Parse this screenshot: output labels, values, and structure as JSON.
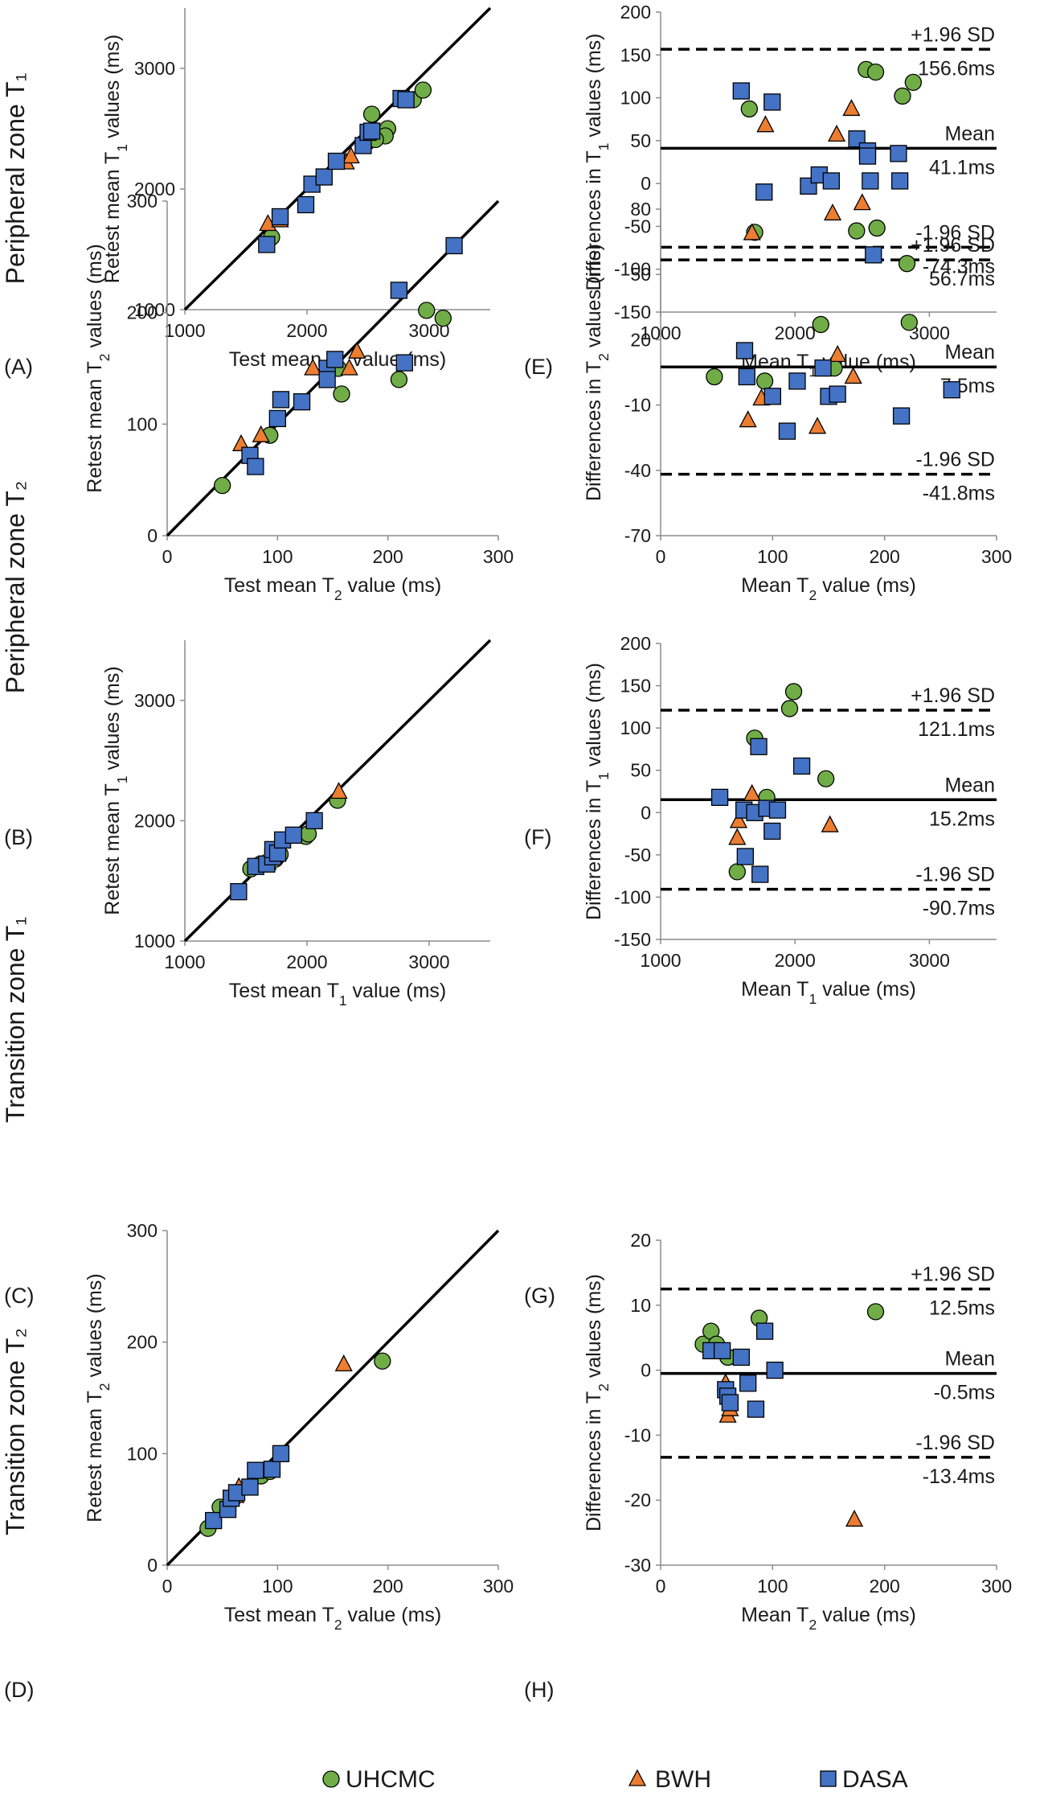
{
  "row_labels": [
    "Peripheral zone T₁",
    "Peripheral zone T₂",
    "Transition zone T₁",
    "Transition zone T₂"
  ],
  "legend": [
    {
      "label": "UHCMC",
      "marker": "circle",
      "color": "#70ad47"
    },
    {
      "label": "BWH",
      "marker": "triangle",
      "color": "#ed7d31"
    },
    {
      "label": "DASA",
      "marker": "square",
      "color": "#4472c4"
    }
  ],
  "chart_data": [
    {
      "panel": "(A)",
      "type": "scatter",
      "xlabel": "Test mean T₁ value (ms)",
      "ylabel": "Retest mean T₁ values (ms)",
      "xlim": [
        1000,
        3500
      ],
      "ylim": [
        1000,
        3500
      ],
      "xticks": [
        1000,
        2000,
        3000
      ],
      "yticks": [
        1000,
        2000,
        3000
      ],
      "identity_line": true,
      "series": [
        {
          "name": "UHCMC",
          "points": [
            [
              1710,
              1600
            ],
            [
              2530,
              2620
            ],
            [
              2600,
              2460
            ],
            [
              2660,
              2500
            ],
            [
              2640,
              2440
            ],
            [
              2870,
              2740
            ],
            [
              2950,
              2820
            ],
            [
              2560,
              2410
            ]
          ]
        },
        {
          "name": "BWH",
          "points": [
            [
              1680,
              1710
            ],
            [
              1780,
              1740
            ],
            [
              2040,
              2030
            ],
            [
              2320,
              2220
            ],
            [
              2470,
              2390
            ],
            [
              2360,
              2270
            ]
          ]
        },
        {
          "name": "DASA",
          "points": [
            [
              1670,
              1540
            ],
            [
              1780,
              1770
            ],
            [
              1990,
              1870
            ],
            [
              2040,
              2040
            ],
            [
              2140,
              2100
            ],
            [
              2240,
              2230
            ],
            [
              2460,
              2360
            ],
            [
              2500,
              2470
            ],
            [
              2530,
              2480
            ],
            [
              2770,
              2750
            ],
            [
              2810,
              2740
            ]
          ]
        }
      ]
    },
    {
      "panel": "(E)",
      "type": "scatter",
      "xlabel": "Mean T₁ value (ms)",
      "ylabel": "Differences in T₁ values (ms)",
      "xlim": [
        1000,
        3500
      ],
      "ylim": [
        -150,
        200
      ],
      "xticks": [
        1000,
        2000,
        3000
      ],
      "yticks": [
        -150,
        -100,
        -50,
        0,
        50,
        100,
        150,
        200
      ],
      "mean": 41.1,
      "upper_loa": 156.6,
      "lower_loa": -74.3,
      "annotations": {
        "upper_top": "+1.96 SD",
        "upper_bottom": "156.6ms",
        "mean_top": "Mean",
        "mean_bottom": "41.1ms",
        "lower_top": "-1.96 SD",
        "lower_bottom": "-74.3ms"
      },
      "series": [
        {
          "name": "UHCMC",
          "points": [
            [
              1660,
              87
            ],
            [
              1700,
              -57
            ],
            [
              2530,
              133
            ],
            [
              2600,
              130
            ],
            [
              2610,
              -52
            ],
            [
              2800,
              102
            ],
            [
              2880,
              118
            ]
          ]
        },
        {
          "name": "BWH",
          "points": [
            [
              1680,
              -58
            ],
            [
              1780,
              68
            ],
            [
              2280,
              -35
            ],
            [
              2310,
              57
            ],
            [
              2420,
              87
            ],
            [
              2500,
              -23
            ]
          ]
        },
        {
          "name": "DASA",
          "points": [
            [
              1600,
              108
            ],
            [
              1830,
              95
            ],
            [
              1770,
              -10
            ],
            [
              2100,
              -3
            ],
            [
              2180,
              10
            ],
            [
              2270,
              3
            ],
            [
              2460,
              52
            ],
            [
              2540,
              38
            ],
            [
              2540,
              32
            ],
            [
              2560,
              3
            ],
            [
              2770,
              35
            ],
            [
              2780,
              3
            ]
          ]
        }
      ]
    },
    {
      "panel": "(B)",
      "type": "scatter",
      "xlabel": "Test mean T₂ value (ms)",
      "ylabel": "Retest mean T₂ values (ms)",
      "xlim": [
        0,
        300
      ],
      "ylim": [
        0,
        300
      ],
      "xticks": [
        0,
        100,
        200,
        300
      ],
      "yticks": [
        0,
        100,
        200,
        300
      ],
      "identity_line": true,
      "series": [
        {
          "name": "UHCMC",
          "points": [
            [
              50,
              45
            ],
            [
              93,
              90
            ],
            [
              155,
              150
            ],
            [
              158,
              127
            ],
            [
              210,
              140
            ],
            [
              235,
              202
            ],
            [
              250,
              195
            ]
          ]
        },
        {
          "name": "BWH",
          "points": [
            [
              67,
              82
            ],
            [
              85,
              90
            ],
            [
              132,
              150
            ],
            [
              165,
              150
            ],
            [
              172,
              165
            ]
          ]
        },
        {
          "name": "DASA",
          "points": [
            [
              75,
              72
            ],
            [
              80,
              62
            ],
            [
              100,
              105
            ],
            [
              103,
              122
            ],
            [
              122,
              120
            ],
            [
              145,
              150
            ],
            [
              145,
              140
            ],
            [
              152,
              158
            ],
            [
              210,
              220
            ],
            [
              215,
              155
            ],
            [
              260,
              260
            ]
          ]
        }
      ]
    },
    {
      "panel": "(F)",
      "type": "scatter",
      "xlabel": "Mean T₂ value (ms)",
      "ylabel": "Differences in T₂ values (ms)",
      "xlim": [
        0,
        300
      ],
      "ylim": [
        -70,
        80
      ],
      "xticks": [
        0,
        100,
        200,
        300
      ],
      "yticks": [
        -70,
        -40,
        -10,
        20,
        50,
        80
      ],
      "mean": 7.5,
      "upper_loa": 56.7,
      "lower_loa": -41.8,
      "annotations": {
        "upper_top": "+1.96 SD",
        "upper_bottom": "56.7ms",
        "mean_top": "Mean",
        "mean_bottom": "7.5ms",
        "lower_top": "-1.96 SD",
        "lower_bottom": "-41.8ms"
      },
      "series": [
        {
          "name": "UHCMC",
          "points": [
            [
              48,
              3
            ],
            [
              93,
              1
            ],
            [
              143,
              27
            ],
            [
              155,
              7
            ],
            [
              175,
              70
            ],
            [
              220,
              55
            ],
            [
              222,
              28
            ]
          ]
        },
        {
          "name": "BWH",
          "points": [
            [
              78,
              -17
            ],
            [
              90,
              -7
            ],
            [
              140,
              -20
            ],
            [
              158,
              13
            ],
            [
              172,
              3
            ]
          ]
        },
        {
          "name": "DASA",
          "points": [
            [
              75,
              15
            ],
            [
              77,
              3
            ],
            [
              100,
              -6
            ],
            [
              113,
              -22
            ],
            [
              122,
              1
            ],
            [
              145,
              7
            ],
            [
              150,
              -6
            ],
            [
              158,
              -5
            ],
            [
              190,
              59
            ],
            [
              215,
              -15
            ],
            [
              260,
              -3
            ]
          ]
        }
      ]
    },
    {
      "panel": "(C)",
      "type": "scatter",
      "xlabel": "Test mean T₁ value (ms)",
      "ylabel": "Retest mean T₁ values (ms)",
      "xlim": [
        1000,
        3500
      ],
      "ylim": [
        1000,
        3500
      ],
      "xticks": [
        1000,
        2000,
        3000
      ],
      "yticks": [
        1000,
        2000,
        3000
      ],
      "identity_line": true,
      "series": [
        {
          "name": "UHCMC",
          "points": [
            [
              1540,
              1600
            ],
            [
              1620,
              1640
            ],
            [
              1740,
              1680
            ],
            [
              1780,
              1720
            ],
            [
              1990,
              1870
            ],
            [
              2010,
              1890
            ],
            [
              2250,
              2170
            ]
          ]
        },
        {
          "name": "BWH",
          "points": [
            [
              1640,
              1640
            ],
            [
              1680,
              1650
            ],
            [
              1720,
              1700
            ],
            [
              2260,
              2240
            ]
          ]
        },
        {
          "name": "DASA",
          "points": [
            [
              1440,
              1410
            ],
            [
              1580,
              1620
            ],
            [
              1670,
              1640
            ],
            [
              1720,
              1700
            ],
            [
              1720,
              1760
            ],
            [
              1760,
              1730
            ],
            [
              1800,
              1840
            ],
            [
              1890,
              1880
            ],
            [
              2060,
              2000
            ]
          ]
        }
      ]
    },
    {
      "panel": "(G)",
      "type": "scatter",
      "xlabel": "Mean T₁ value (ms)",
      "ylabel": "Differences in T₁ values (ms)",
      "xlim": [
        1000,
        3500
      ],
      "ylim": [
        -150,
        200
      ],
      "xticks": [
        1000,
        2000,
        3000
      ],
      "yticks": [
        -150,
        -100,
        -50,
        0,
        50,
        100,
        150,
        200
      ],
      "mean": 15.2,
      "upper_loa": 121.1,
      "lower_loa": -90.7,
      "annotations": {
        "upper_top": "+1.96 SD",
        "upper_bottom": "121.1ms",
        "mean_top": "Mean",
        "mean_bottom": "15.2ms",
        "lower_top": "-1.96 SD",
        "lower_bottom": "-90.7ms"
      },
      "series": [
        {
          "name": "UHCMC",
          "points": [
            [
              1570,
              -70
            ],
            [
              1700,
              88
            ],
            [
              1790,
              18
            ],
            [
              1960,
              123
            ],
            [
              1990,
              143
            ],
            [
              2230,
              40
            ]
          ]
        },
        {
          "name": "BWH",
          "points": [
            [
              1570,
              -30
            ],
            [
              1580,
              -10
            ],
            [
              1680,
              22
            ],
            [
              2260,
              -15
            ]
          ]
        },
        {
          "name": "DASA",
          "points": [
            [
              1440,
              18
            ],
            [
              1620,
              3
            ],
            [
              1630,
              -52
            ],
            [
              1700,
              0
            ],
            [
              1730,
              78
            ],
            [
              1740,
              -73
            ],
            [
              1790,
              5
            ],
            [
              1830,
              -22
            ],
            [
              1870,
              3
            ],
            [
              2050,
              55
            ]
          ]
        }
      ]
    },
    {
      "panel": "(D)",
      "type": "scatter",
      "xlabel": "Test mean T₂ value (ms)",
      "ylabel": "Retest mean T₂ values (ms)",
      "xlim": [
        0,
        300
      ],
      "ylim": [
        0,
        300
      ],
      "xticks": [
        0,
        100,
        200,
        300
      ],
      "yticks": [
        0,
        100,
        200,
        300
      ],
      "identity_line": true,
      "series": [
        {
          "name": "UHCMC",
          "points": [
            [
              37,
              33
            ],
            [
              42,
              40
            ],
            [
              48,
              52
            ],
            [
              60,
              60
            ],
            [
              85,
              80
            ],
            [
              93,
              84
            ],
            [
              195,
              183
            ]
          ]
        },
        {
          "name": "BWH",
          "points": [
            [
              55,
              55
            ],
            [
              62,
              62
            ],
            [
              65,
              70
            ],
            [
              160,
              180
            ]
          ]
        },
        {
          "name": "DASA",
          "points": [
            [
              42,
              40
            ],
            [
              55,
              50
            ],
            [
              58,
              60
            ],
            [
              63,
              65
            ],
            [
              75,
              70
            ],
            [
              80,
              85
            ],
            [
              95,
              86
            ],
            [
              103,
              100
            ]
          ]
        }
      ]
    },
    {
      "panel": "(H)",
      "type": "scatter",
      "xlabel": "Mean T₂ value (ms)",
      "ylabel": "Differences in T₂ values (ms)",
      "xlim": [
        0,
        300
      ],
      "ylim": [
        -30,
        20
      ],
      "xticks": [
        0,
        100,
        200,
        300
      ],
      "yticks": [
        -30,
        -20,
        -10,
        0,
        10,
        20
      ],
      "mean": -0.5,
      "upper_loa": 12.5,
      "lower_loa": -13.4,
      "annotations": {
        "upper_top": "+1.96 SD",
        "upper_bottom": "12.5ms",
        "mean_top": "Mean",
        "mean_bottom": "-0.5ms",
        "lower_top": "-1.96 SD",
        "lower_bottom": "-13.4ms"
      },
      "series": [
        {
          "name": "UHCMC",
          "points": [
            [
              38,
              4
            ],
            [
              45,
              6
            ],
            [
              50,
              4
            ],
            [
              60,
              2
            ],
            [
              88,
              8
            ],
            [
              192,
              9
            ]
          ]
        },
        {
          "name": "BWH",
          "points": [
            [
              58,
              -2
            ],
            [
              60,
              -7
            ],
            [
              62,
              -6
            ],
            [
              173,
              -23
            ]
          ]
        },
        {
          "name": "DASA",
          "points": [
            [
              45,
              3
            ],
            [
              55,
              3
            ],
            [
              58,
              -3
            ],
            [
              60,
              -4
            ],
            [
              62,
              -5
            ],
            [
              72,
              2
            ],
            [
              78,
              -2
            ],
            [
              85,
              -6
            ],
            [
              93,
              6
            ],
            [
              102,
              0
            ]
          ]
        }
      ]
    }
  ]
}
